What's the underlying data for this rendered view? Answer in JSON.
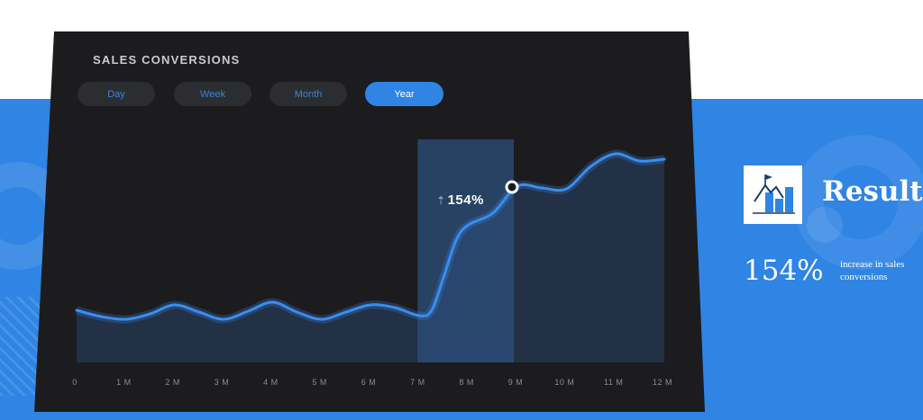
{
  "panel": {
    "title": "SALES CONVERSIONS",
    "tabs": [
      {
        "label": "Day",
        "active": false
      },
      {
        "label": "Week",
        "active": false
      },
      {
        "label": "Month",
        "active": false
      },
      {
        "label": "Year",
        "active": true
      }
    ],
    "peak_label": "154%"
  },
  "chart_data": {
    "type": "area",
    "x_ticks": [
      "0",
      "1 M",
      "2 M",
      "3 M",
      "4 M",
      "5 M",
      "6 M",
      "7 M",
      "8 M",
      "9 M",
      "10 M",
      "11 M",
      "12 M"
    ],
    "x": [
      0,
      0.5,
      1,
      1.5,
      2,
      2.5,
      3,
      3.5,
      4,
      4.5,
      5,
      5.5,
      6,
      6.5,
      7,
      7.25,
      7.5,
      7.75,
      8,
      8.5,
      9,
      9.5,
      10,
      10.5,
      11,
      11.5,
      12
    ],
    "y": [
      30,
      23,
      20,
      26,
      36,
      28,
      20,
      29,
      39,
      28,
      20,
      28,
      36,
      33,
      24,
      30,
      68,
      108,
      125,
      138,
      168,
      166,
      165,
      190,
      204,
      196,
      198
    ],
    "highlight_range": [
      7,
      9
    ],
    "highlight_point": {
      "x": 9,
      "label": "154%"
    },
    "colors": {
      "line": "#3a8df0",
      "fill": "#24344a",
      "highlight": "#2c4f7c",
      "panel": "#1c1c1e"
    }
  },
  "result": {
    "icon": "mountain-flag-bar-chart-icon",
    "title": "Result",
    "value": "154%",
    "description": "increase in sales conversions"
  },
  "colors": {
    "brand_blue": "#2f84e4",
    "panel_bg": "#1c1c1e"
  }
}
